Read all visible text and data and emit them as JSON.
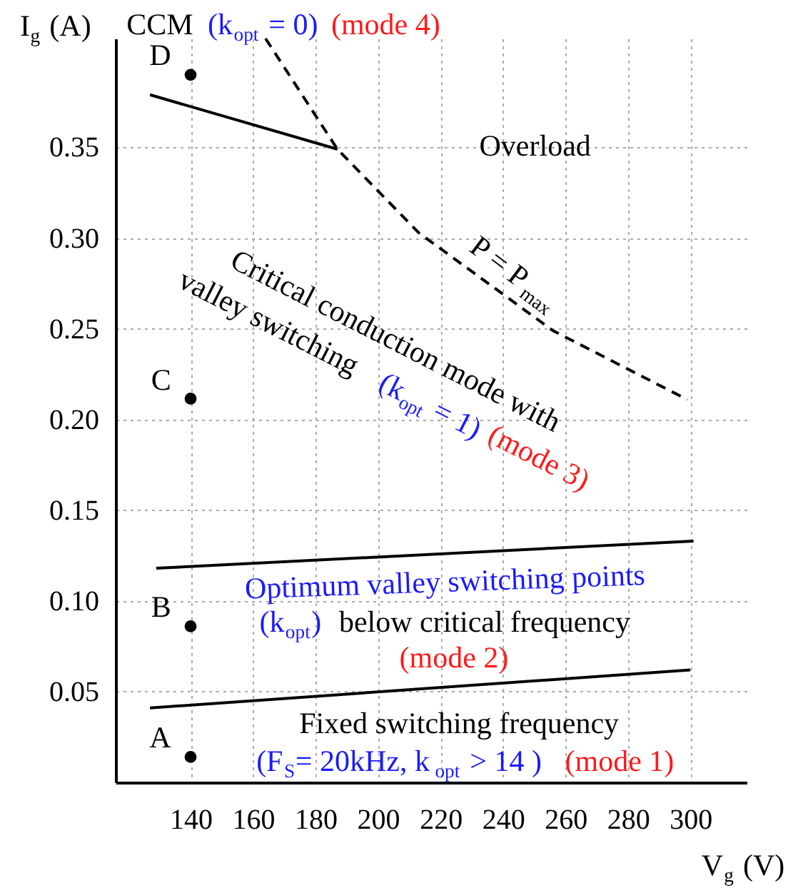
{
  "chart_data": {
    "type": "line",
    "xlabel": "V$_{g}$ (V)",
    "ylabel": "I$_{g}$ (A)",
    "xlim": [
      116,
      318
    ],
    "ylim": [
      0,
      0.41
    ],
    "xticks": [
      140,
      160,
      180,
      200,
      220,
      240,
      260,
      280,
      300
    ],
    "yticks": [
      {
        "value": 0.05,
        "label": "0.05"
      },
      {
        "value": 0.1,
        "label": "0.10"
      },
      {
        "value": 0.15,
        "label": "0.15"
      },
      {
        "value": 0.2,
        "label": "0.20"
      },
      {
        "value": 0.25,
        "label": "0.25"
      },
      {
        "value": 0.3,
        "label": "0.30"
      },
      {
        "value": 0.35,
        "label": "0.35"
      }
    ],
    "grid": true,
    "series": [
      {
        "type": "line",
        "color": "#000000",
        "line_style": "solid",
        "x": [
          127,
          187
        ],
        "values": [
          0.379,
          0.349
        ]
      },
      {
        "type": "line",
        "color": "#000000",
        "line_style": "dashed",
        "x": [
          164,
          187,
          213,
          256,
          299
        ],
        "values": [
          0.41,
          0.349,
          0.303,
          0.249,
          0.211
        ]
      },
      {
        "type": "line",
        "color": "#000000",
        "line_style": "solid",
        "x": [
          129,
          301
        ],
        "values": [
          0.118,
          0.133
        ]
      },
      {
        "type": "line",
        "color": "#000000",
        "line_style": "solid",
        "x": [
          127,
          300
        ],
        "values": [
          0.041,
          0.062
        ]
      },
      {
        "type": "scatter",
        "color": "#000000",
        "marker": "circle",
        "x": [
          140,
          140,
          140,
          140
        ],
        "values": [
          0.39,
          0.2115,
          0.086,
          0.014
        ]
      }
    ],
    "annotations": [
      "CCM",
      "(k$_{opt}$ = 0)",
      "(mode 4)",
      "Overload",
      "P = P$_{max}$",
      "Critical conduction mode with",
      "valley switching",
      "(k$_{opt}$ = 1)",
      "(mode 3)",
      "Optimum valley switching points",
      "(k$_{opt}$)",
      "below critical frequency",
      "(mode 2)",
      "Fixed switching frequency",
      "(F$_{S}$= 20kHz, k$_{opt}$ > 14 )",
      "(mode 1)",
      "D",
      "C",
      "B",
      "A"
    ]
  }
}
